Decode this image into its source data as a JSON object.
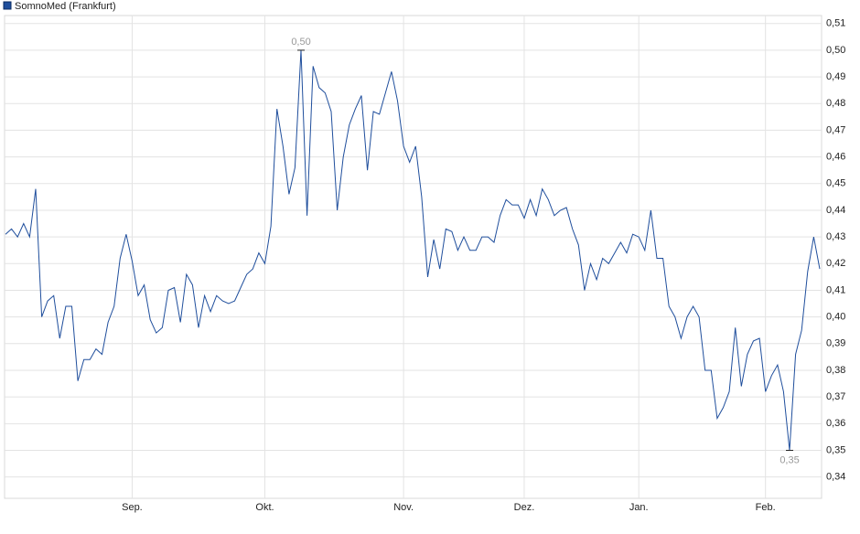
{
  "chart_data": {
    "type": "line",
    "series": [
      {
        "name": "SomnoMed (Frankfurt)",
        "color": "#1f4e9c",
        "values": [
          0.431,
          0.433,
          0.43,
          0.435,
          0.43,
          0.448,
          0.4,
          0.406,
          0.408,
          0.392,
          0.404,
          0.404,
          0.376,
          0.384,
          0.384,
          0.388,
          0.386,
          0.398,
          0.404,
          0.422,
          0.431,
          0.421,
          0.408,
          0.412,
          0.399,
          0.394,
          0.396,
          0.41,
          0.411,
          0.398,
          0.416,
          0.412,
          0.396,
          0.408,
          0.402,
          0.408,
          0.406,
          0.405,
          0.406,
          0.411,
          0.416,
          0.418,
          0.424,
          0.42,
          0.434,
          0.478,
          0.464,
          0.446,
          0.456,
          0.5,
          0.438,
          0.494,
          0.486,
          0.484,
          0.477,
          0.44,
          0.46,
          0.472,
          0.478,
          0.483,
          0.455,
          0.477,
          0.476,
          0.484,
          0.492,
          0.481,
          0.464,
          0.458,
          0.464,
          0.445,
          0.415,
          0.429,
          0.418,
          0.433,
          0.432,
          0.425,
          0.43,
          0.425,
          0.425,
          0.43,
          0.43,
          0.428,
          0.438,
          0.444,
          0.442,
          0.442,
          0.437,
          0.444,
          0.438,
          0.448,
          0.444,
          0.438,
          0.44,
          0.441,
          0.433,
          0.427,
          0.41,
          0.42,
          0.414,
          0.422,
          0.42,
          0.424,
          0.428,
          0.424,
          0.431,
          0.43,
          0.425,
          0.44,
          0.422,
          0.422,
          0.404,
          0.4,
          0.392,
          0.4,
          0.404,
          0.4,
          0.38,
          0.38,
          0.362,
          0.366,
          0.372,
          0.396,
          0.374,
          0.386,
          0.391,
          0.392,
          0.372,
          0.378,
          0.382,
          0.372,
          0.35,
          0.386,
          0.395,
          0.417,
          0.43,
          0.418
        ]
      }
    ],
    "categories": [
      null,
      null,
      null,
      null,
      null,
      null,
      null,
      null,
      null,
      null,
      null,
      null,
      null,
      null,
      null,
      null,
      null,
      null,
      null,
      null,
      null,
      "Sep.",
      null,
      null,
      null,
      null,
      null,
      null,
      null,
      null,
      null,
      null,
      null,
      null,
      null,
      null,
      null,
      null,
      null,
      null,
      null,
      null,
      null,
      "Okt.",
      null,
      null,
      null,
      null,
      null,
      null,
      null,
      null,
      null,
      null,
      null,
      null,
      null,
      null,
      null,
      null,
      null,
      null,
      null,
      null,
      null,
      null,
      "Nov.",
      null,
      null,
      null,
      null,
      null,
      null,
      null,
      null,
      null,
      null,
      null,
      null,
      null,
      null,
      null,
      null,
      null,
      null,
      null,
      "Dez.",
      null,
      null,
      null,
      null,
      null,
      null,
      null,
      null,
      null,
      null,
      null,
      null,
      null,
      null,
      null,
      null,
      null,
      null,
      "Jan.",
      null,
      null,
      null,
      null,
      null,
      null,
      null,
      null,
      null,
      null,
      null,
      null,
      null,
      null,
      null,
      null,
      null,
      null,
      null,
      null,
      "Feb.",
      null,
      null,
      null,
      null,
      null,
      null,
      null,
      null,
      null
    ],
    "ylim": [
      0.332,
      0.513
    ],
    "yticks": [
      {
        "value": 0.34,
        "label": "0,34"
      },
      {
        "value": 0.35,
        "label": "0,35"
      },
      {
        "value": 0.36,
        "label": "0,36"
      },
      {
        "value": 0.37,
        "label": "0,37"
      },
      {
        "value": 0.38,
        "label": "0,38"
      },
      {
        "value": 0.39,
        "label": "0,39"
      },
      {
        "value": 0.4,
        "label": "0,40"
      },
      {
        "value": 0.41,
        "label": "0,41"
      },
      {
        "value": 0.42,
        "label": "0,42"
      },
      {
        "value": 0.43,
        "label": "0,43"
      },
      {
        "value": 0.44,
        "label": "0,44"
      },
      {
        "value": 0.45,
        "label": "0,45"
      },
      {
        "value": 0.46,
        "label": "0,46"
      },
      {
        "value": 0.47,
        "label": "0,47"
      },
      {
        "value": 0.48,
        "label": "0,48"
      },
      {
        "value": 0.49,
        "label": "0,49"
      },
      {
        "value": 0.5,
        "label": "0,50"
      },
      {
        "value": 0.51,
        "label": "0,51"
      }
    ],
    "annotations": [
      {
        "label": "0,50",
        "value": 0.5
      },
      {
        "label": "0,35",
        "value": 0.35
      }
    ],
    "grid": true
  }
}
